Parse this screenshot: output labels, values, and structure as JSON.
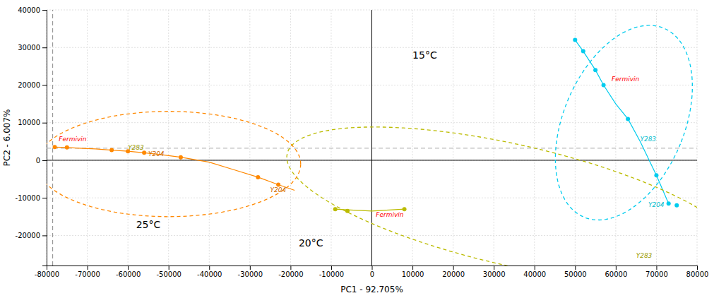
{
  "chart_data": {
    "type": "scatter",
    "x_label": "PC1 - 92.705%",
    "y_label": "PC2 - 6.007%",
    "xlim": [
      -80000,
      80000
    ],
    "ylim": [
      -28000,
      40000
    ],
    "xticks": [
      -80000,
      -70000,
      -60000,
      -50000,
      -40000,
      -30000,
      -20000,
      -10000,
      0,
      10000,
      20000,
      30000,
      40000,
      50000,
      60000,
      70000,
      80000
    ],
    "yticks": [
      -20000,
      -10000,
      0,
      10000,
      20000,
      30000,
      40000
    ],
    "grid": true,
    "hlines": [
      {
        "y": 0,
        "color": "#000000",
        "line_style": "solid"
      },
      {
        "y": 3200,
        "color": "#aaaaaa",
        "line_style": "dashed"
      }
    ],
    "vlines": [
      {
        "x": 0,
        "color": "#000000",
        "line_style": "solid"
      },
      {
        "x": -78500,
        "color": "#888888",
        "line_style": "dashed"
      }
    ],
    "series": [
      {
        "name": "15°C",
        "color": "#00ccee",
        "name_x": 10000,
        "name_y": 27000,
        "line_x": [
          50000,
          52000,
          55000,
          57000,
          60000,
          63000,
          66000,
          70000,
          73000
        ],
        "line_y": [
          32000,
          29000,
          24000,
          20000,
          15000,
          11000,
          5000,
          -4000,
          -11500
        ],
        "x": [
          50000,
          52000,
          55000,
          57000,
          63000,
          70000,
          73000,
          75000
        ],
        "y": [
          32000,
          29000,
          24000,
          20000,
          11000,
          -4000,
          -11500,
          -12000
        ],
        "ellipse": {
          "cx": 62000,
          "cy": 10000,
          "width": 30000,
          "height": 54000,
          "angle": -20
        },
        "annotations": [
          {
            "text": "Fermivin",
            "x": 59000,
            "y": 21000,
            "color": "#ff0000"
          },
          {
            "text": "Y283",
            "x": 66000,
            "y": 5000,
            "color": "#00bbcc"
          },
          {
            "text": "Y204",
            "x": 68000,
            "y": -12500,
            "color": "#00bbcc"
          }
        ]
      },
      {
        "name": "20°C",
        "color": "#bbbb00",
        "name_x": -18000,
        "name_y": -23000,
        "line_x": [
          -9000,
          -6000,
          0,
          5000,
          8000
        ],
        "line_y": [
          -13000,
          -13200,
          -13500,
          -13200,
          -13000
        ],
        "x": [
          -9000,
          -6000,
          8000
        ],
        "y": [
          -13000,
          -13500,
          -13000
        ],
        "ellipse": {
          "cx": 35000,
          "cy": -12000,
          "width": 115000,
          "height": 32000,
          "angle": -14
        },
        "annotations": [
          {
            "text": "Fermivin",
            "x": 1000,
            "y": -15000,
            "color": "#ff0000"
          },
          {
            "text": "Y283",
            "x": 65000,
            "y": -26000,
            "color": "#999900"
          }
        ]
      },
      {
        "name": "25°C",
        "color": "#ff8800",
        "name_x": -58000,
        "name_y": -18000,
        "line_x": [
          -78000,
          -75000,
          -72000,
          -68000,
          -64000,
          -60000,
          -56000,
          -52000,
          -47000,
          -40000,
          -34000,
          -28000,
          -23000,
          -19000
        ],
        "line_y": [
          3500,
          3400,
          3200,
          3000,
          2700,
          2400,
          2000,
          1500,
          800,
          -500,
          -2500,
          -4500,
          -6500,
          -8000
        ],
        "x": [
          -78000,
          -75000,
          -64000,
          -60000,
          -56000,
          -47000,
          -28000,
          -23000
        ],
        "y": [
          3500,
          3400,
          2700,
          2400,
          2000,
          800,
          -4500,
          -6500
        ],
        "ellipse": {
          "cx": -50000,
          "cy": -1000,
          "width": 65000,
          "height": 28000,
          "angle": 0
        },
        "annotations": [
          {
            "text": "Fermivin",
            "x": -77000,
            "y": 5000,
            "color": "#ff0000"
          },
          {
            "text": "Y283",
            "x": -60000,
            "y": 2800,
            "color": "#999900"
          },
          {
            "text": "Y204",
            "x": -55000,
            "y": 1200,
            "color": "#cc6600"
          },
          {
            "text": "Y204",
            "x": -25000,
            "y": -8500,
            "color": "#cc6600"
          }
        ]
      }
    ]
  }
}
